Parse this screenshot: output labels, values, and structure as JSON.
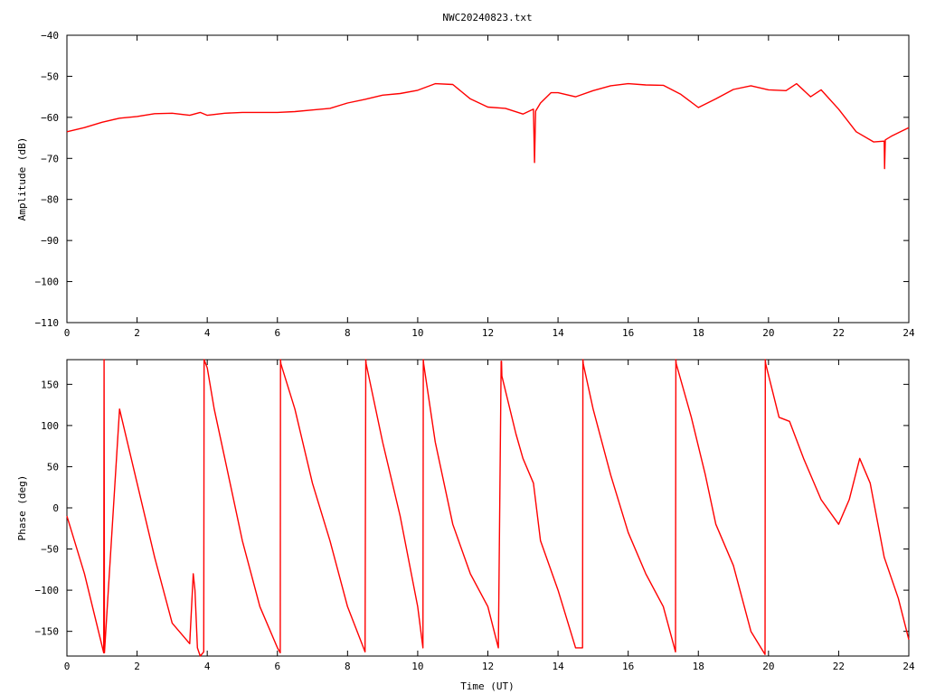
{
  "title": "NWC20240823.txt",
  "chart_data": [
    {
      "type": "line",
      "ylabel": "Amplitude (dB)",
      "xlabel": "",
      "xlim": [
        0,
        24
      ],
      "ylim": [
        -110,
        -40
      ],
      "xticks": [
        "0",
        "2",
        "4",
        "6",
        "8",
        "10",
        "12",
        "14",
        "16",
        "18",
        "20",
        "22",
        "24"
      ],
      "yticks": [
        "-110",
        "-100",
        "-90",
        "-80",
        "-70",
        "-60",
        "-50",
        "-40"
      ],
      "color": "#ff0000",
      "series": [
        {
          "x": [
            0,
            0.5,
            1,
            1.5,
            2,
            2.5,
            3,
            3.5,
            3.8,
            4,
            4.5,
            5,
            5.5,
            6,
            6.5,
            7,
            7.5,
            8,
            8.5,
            9,
            9.5,
            10,
            10.5,
            11,
            11.5,
            12,
            12.5,
            13,
            13.3,
            13.33,
            13.36,
            13.5,
            13.8,
            14,
            14.5,
            15,
            15.5,
            16,
            16.5,
            17,
            17.5,
            18,
            18.5,
            19,
            19.5,
            20,
            20.5,
            20.8,
            21.2,
            21.5,
            22,
            22.5,
            23,
            23.3,
            23.31,
            23.33,
            23.5,
            24
          ],
          "y": [
            -63.5,
            -62.5,
            -61.2,
            -60.2,
            -59.8,
            -59.1,
            -59.0,
            -59.5,
            -58.8,
            -59.5,
            -59.0,
            -58.8,
            -58.8,
            -58.8,
            -58.6,
            -58.2,
            -57.8,
            -56.5,
            -55.6,
            -54.6,
            -54.2,
            -53.4,
            -51.8,
            -52.0,
            -55.5,
            -57.5,
            -57.8,
            -59.2,
            -58.0,
            -71.0,
            -58.5,
            -56.5,
            -54.0,
            -54.0,
            -55.0,
            -53.5,
            -52.3,
            -51.8,
            -52.1,
            -52.2,
            -54.4,
            -57.6,
            -55.5,
            -53.2,
            -52.3,
            -53.3,
            -53.5,
            -51.8,
            -55.0,
            -53.3,
            -58.0,
            -63.5,
            -66.0,
            -65.8,
            -72.5,
            -65.5,
            -64.6,
            -62.5
          ]
        }
      ]
    },
    {
      "type": "line",
      "ylabel": "Phase (deg)",
      "xlabel": "Time (UT)",
      "xlim": [
        0,
        24
      ],
      "ylim": [
        -180,
        180
      ],
      "xticks": [
        "0",
        "2",
        "4",
        "6",
        "8",
        "10",
        "12",
        "14",
        "16",
        "18",
        "20",
        "22",
        "24"
      ],
      "yticks": [
        "-150",
        "-100",
        "-50",
        "0",
        "50",
        "100",
        "150"
      ],
      "color": "#ff0000",
      "series": [
        {
          "x": [
            0,
            0.5,
            1.05,
            1.06,
            1.07,
            1.5,
            2.0,
            2.5,
            3.0,
            3.5,
            3.6,
            3.65,
            3.72,
            3.8,
            3.9,
            3.91,
            4.0,
            4.2,
            4.5,
            5.0,
            5.5,
            6.0,
            6.08,
            6.09,
            6.1,
            6.5,
            7.0,
            7.5,
            8.0,
            8.5,
            8.52,
            8.53,
            9.0,
            9.5,
            10.0,
            10.15,
            10.16,
            10.17,
            10.5,
            11.0,
            11.5,
            12.0,
            12.3,
            12.38,
            12.39,
            12.4,
            12.8,
            13.0,
            13.3,
            13.5,
            14.0,
            14.5,
            14.7,
            14.71,
            14.72,
            15.0,
            15.5,
            16.0,
            16.5,
            17.0,
            17.35,
            17.36,
            17.37,
            17.8,
            18.2,
            18.5,
            19.0,
            19.5,
            19.9,
            19.91,
            19.92,
            20.3,
            20.6,
            21.0,
            21.5,
            22.0,
            22.3,
            22.6,
            22.9,
            23.3,
            23.7,
            24.0
          ],
          "y": [
            -10,
            -80,
            -176,
            180,
            -176,
            120,
            30,
            -60,
            -140,
            -165,
            -80,
            -100,
            -170,
            -180,
            -175,
            180,
            170,
            120,
            60,
            -40,
            -120,
            -170,
            -176,
            180,
            175,
            120,
            30,
            -40,
            -120,
            -175,
            180,
            175,
            80,
            -10,
            -120,
            -170,
            180,
            175,
            80,
            -20,
            -80,
            -120,
            -170,
            178,
            178,
            160,
            90,
            60,
            30,
            -40,
            -100,
            -170,
            -170,
            180,
            175,
            120,
            40,
            -30,
            -80,
            -120,
            -175,
            180,
            175,
            110,
            40,
            -20,
            -70,
            -150,
            -178,
            180,
            175,
            110,
            105,
            60,
            10,
            -20,
            10,
            60,
            30,
            -60,
            -110,
            -160
          ]
        }
      ]
    }
  ]
}
